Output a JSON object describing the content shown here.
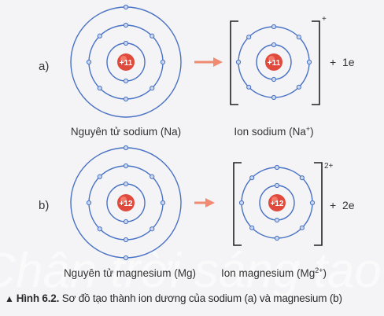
{
  "row_a": {
    "label": "a)",
    "atom_nucleus": "+11",
    "atom_caption": "Nguyên tử sodium (Na)",
    "ion_nucleus": "+11",
    "ion_charge": "+",
    "ion_caption_main": "Ion sodium (Na",
    "ion_caption_sup": "+",
    "ion_caption_end": ")",
    "electrons_label": "+  1e"
  },
  "row_b": {
    "label": "b)",
    "atom_nucleus": "+12",
    "atom_caption": "Nguyên tử magnesium (Mg)",
    "ion_nucleus": "+12",
    "ion_charge": "2+",
    "ion_caption_main": "Ion magnesium (Mg",
    "ion_caption_sup": "2+",
    "ion_caption_end": ")",
    "electrons_label": "+  2e"
  },
  "caption": {
    "icon": "triangle-up-icon",
    "label": "Hình 6.2.",
    "text": " Sơ đồ tạo thành ion dương của sodium (a) và magnesium (b)"
  },
  "watermark": "Chân trời sáng tạo",
  "colors": {
    "orbit": "#4a72c4",
    "electron_fill": "#c8d6ee",
    "nucleus": "#e04a3c",
    "arrow": "#f08a70",
    "bracket": "#222222"
  }
}
